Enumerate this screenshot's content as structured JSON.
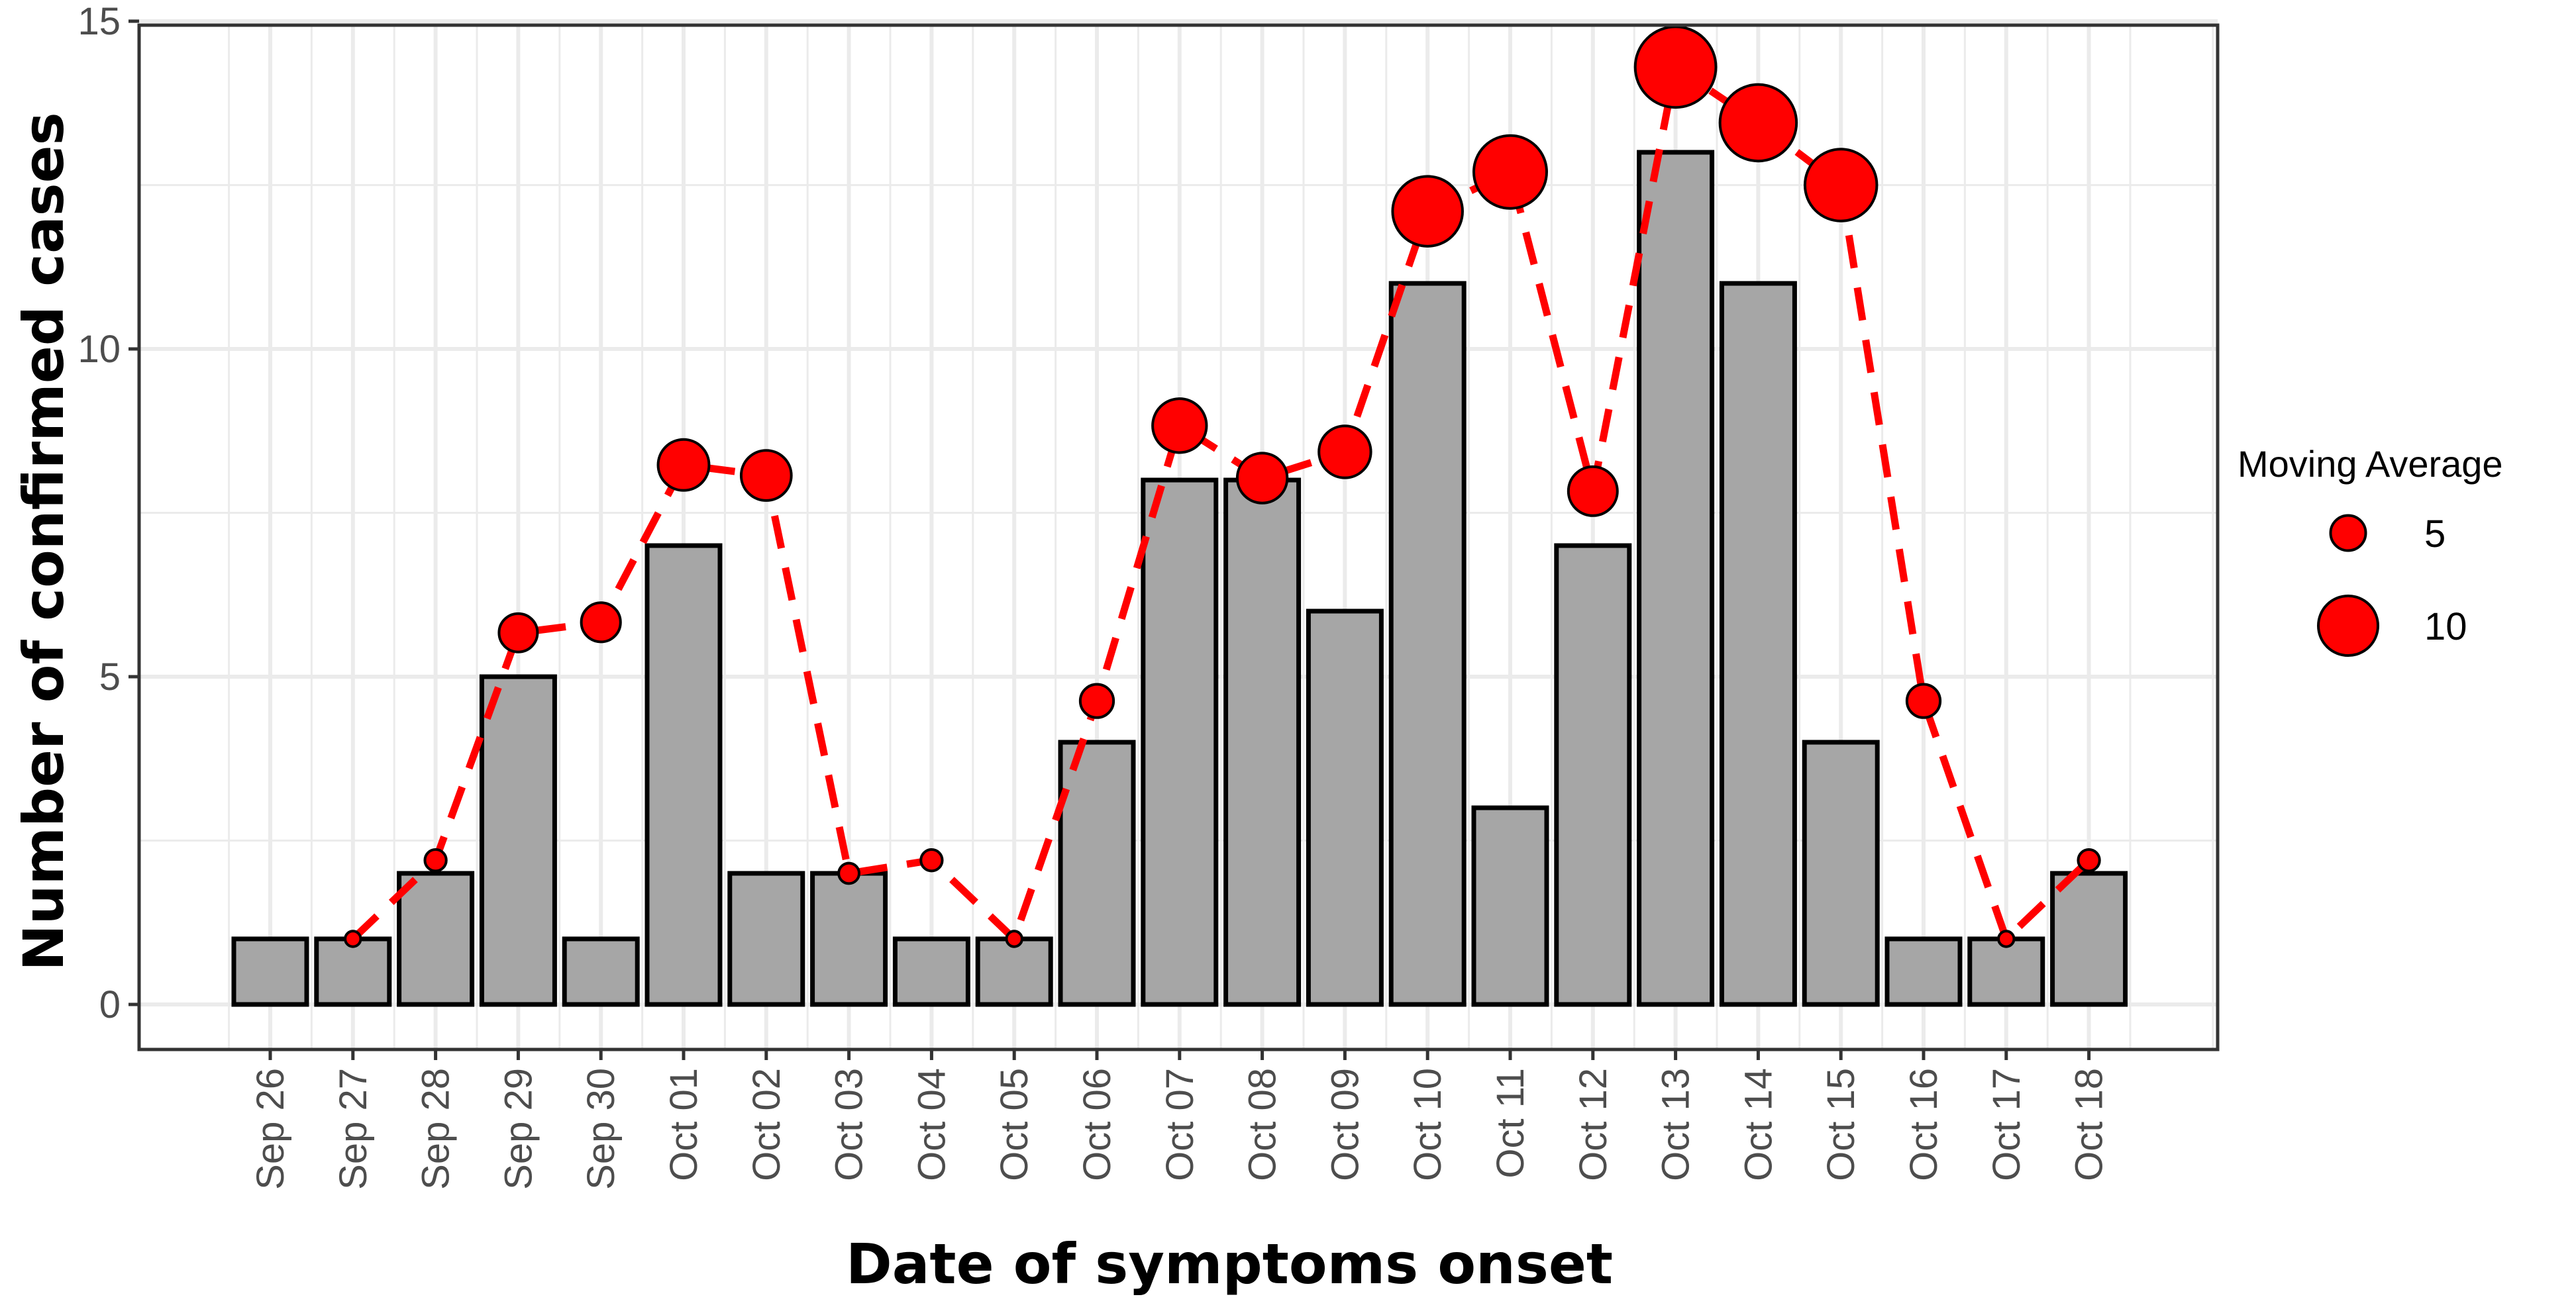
{
  "colors": {
    "bar_fill": "#a6a6a6",
    "bar_stroke": "#000000",
    "point_fill": "#ff0000",
    "line": "#ff0000",
    "grid": "#ebebeb",
    "panel_border": "#333333"
  },
  "chart_data": {
    "type": "bar",
    "title": "",
    "xlabel": "Date of symptoms onset",
    "ylabel": "Number of confirmed cases",
    "ylim": [
      -0.65,
      15
    ],
    "y_ticks": [
      "0",
      "5",
      "10",
      "15"
    ],
    "grid": true,
    "categories": [
      "Sep 26",
      "Sep 27",
      "Sep 28",
      "Sep 29",
      "Sep 30",
      "Oct 01",
      "Oct 02",
      "Oct 03",
      "Oct 04",
      "Oct 05",
      "Oct 06",
      "Oct 07",
      "Oct 08",
      "Oct 09",
      "Oct 10",
      "Oct 11",
      "Oct 12",
      "Oct 13",
      "Oct 14",
      "Oct 15",
      "Oct 16",
      "Oct 17",
      "Oct 18"
    ],
    "series": [
      {
        "name": "Confirmed cases",
        "type": "bar",
        "values": [
          1,
          1,
          2,
          5,
          1,
          7,
          2,
          2,
          1,
          1,
          4,
          8,
          8,
          6,
          11,
          3,
          7,
          13,
          11,
          4,
          1,
          1,
          2
        ]
      },
      {
        "name": "Moving Average",
        "type": "line+point",
        "style": "dashed",
        "values": [
          null,
          1,
          2.2,
          5.67,
          5.83,
          8.23,
          8.07,
          2,
          2.2,
          1,
          4.63,
          8.83,
          8.03,
          8.43,
          12.1,
          12.7,
          7.83,
          14.3,
          13.45,
          12.5,
          4.63,
          1,
          2.2
        ],
        "sizes": [
          null,
          1,
          2.2,
          5.67,
          5.83,
          8.23,
          8.07,
          2,
          2.2,
          1,
          4.63,
          8.83,
          8.03,
          8.43,
          12.1,
          12.7,
          7.83,
          14.3,
          13.45,
          12.5,
          4.63,
          1,
          2.2
        ]
      }
    ],
    "legend": {
      "title": "Moving Average",
      "position": "right",
      "entries": [
        {
          "label": "5",
          "size": 5
        },
        {
          "label": "10",
          "size": 10
        }
      ]
    }
  }
}
